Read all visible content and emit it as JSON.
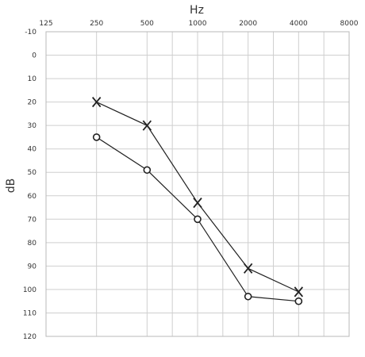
{
  "chart_data": {
    "type": "line",
    "title": "",
    "xlabel": "Hz",
    "ylabel": "dB",
    "x_scale": "log",
    "x_ticks": [
      "125",
      "250",
      "500",
      "1000",
      "2000",
      "4000",
      "8000"
    ],
    "y_ticks": [
      "-10",
      "0",
      "10",
      "20",
      "30",
      "40",
      "50",
      "60",
      "70",
      "80",
      "90",
      "100",
      "110",
      "120"
    ],
    "ylim": [
      -10,
      120
    ],
    "y_inverted": true,
    "grid": true,
    "series": [
      {
        "marker": "x",
        "x": [
          250,
          500,
          1000,
          2000,
          4000
        ],
        "values": [
          20,
          30,
          63,
          91,
          101
        ]
      },
      {
        "marker": "o",
        "x": [
          250,
          500,
          1000,
          2000,
          4000
        ],
        "values": [
          35,
          49,
          70,
          103,
          105
        ]
      }
    ]
  },
  "colors": {
    "grid": "#cfcfcf",
    "frame": "#b8b8b8",
    "line": "#222222",
    "text": "#333333"
  }
}
